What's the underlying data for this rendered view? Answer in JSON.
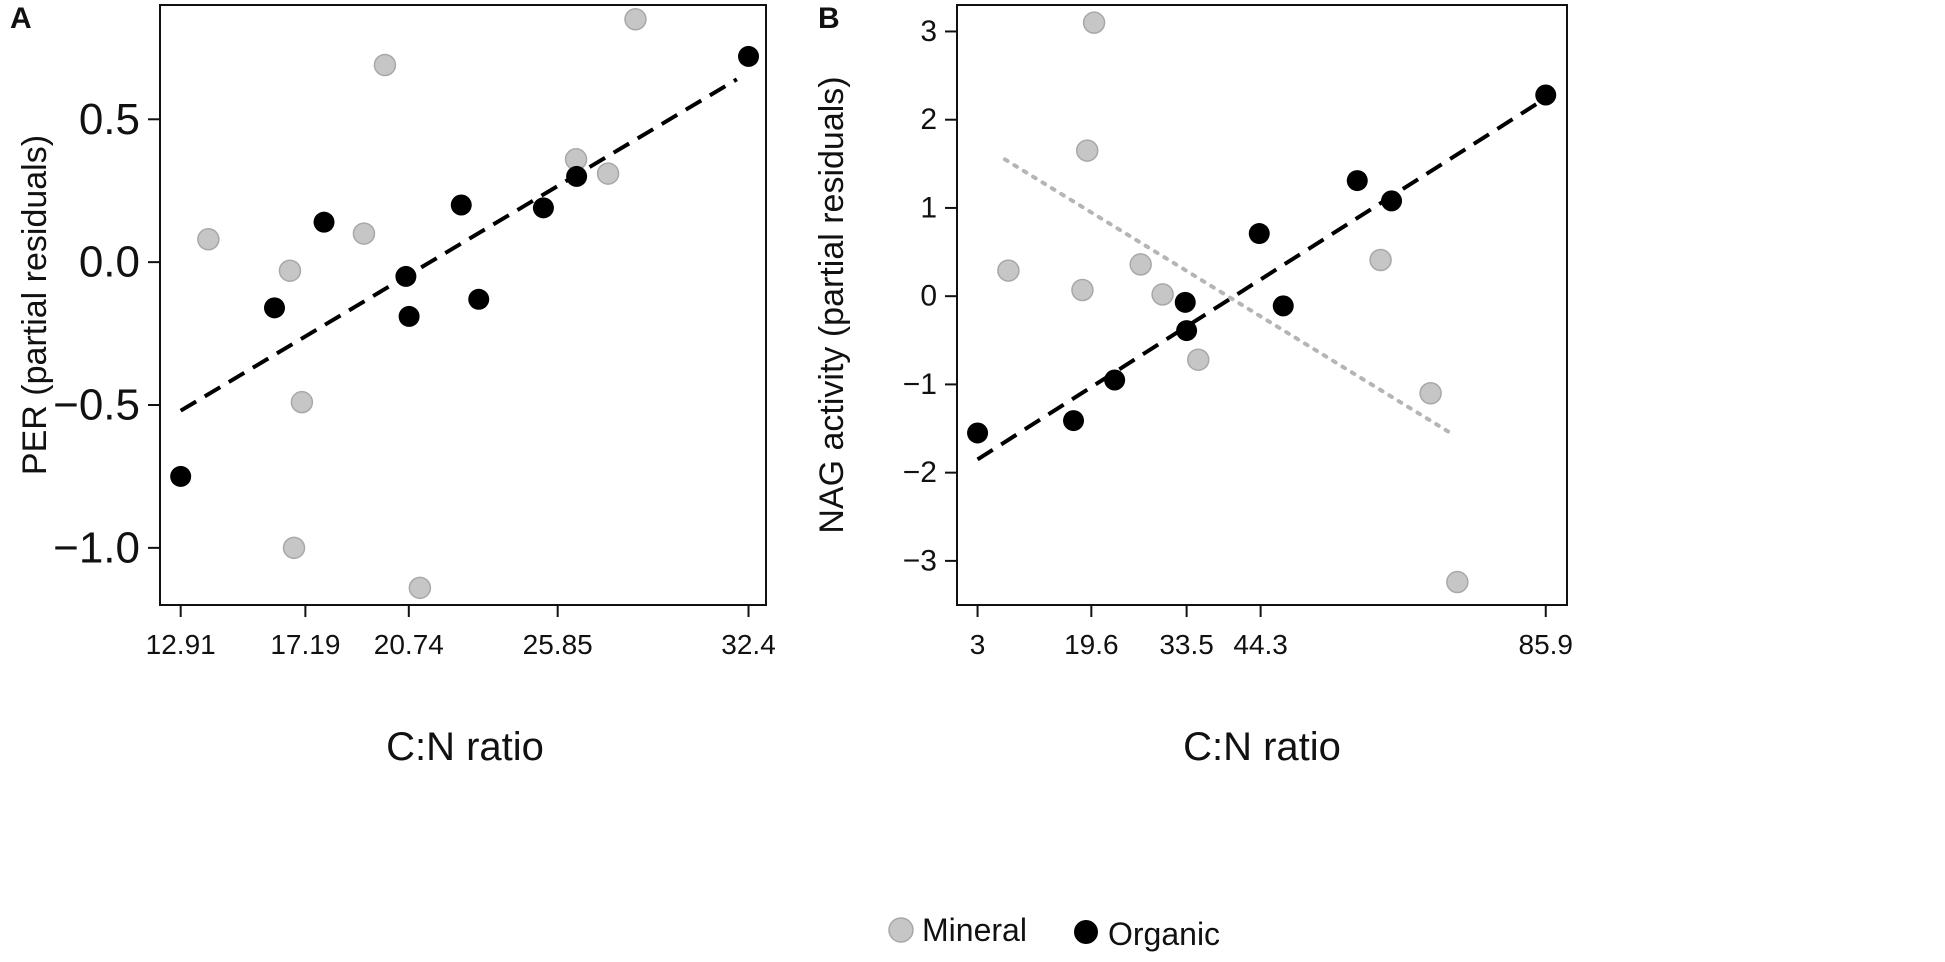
{
  "figure": {
    "legend": {
      "mineral": "Mineral",
      "organic": "Organic"
    }
  },
  "colors": {
    "mineral": "#c6c6c6",
    "mineral_stroke": "#a8a8a8",
    "organic": "#000000",
    "axis": "#111111"
  },
  "chart_data": [
    {
      "type": "scatter",
      "panel_label": "A",
      "title": "",
      "xlabel": "C:N ratio",
      "ylabel": "PER (partial residuals)",
      "xlim": [
        12.2,
        33.0
      ],
      "ylim": [
        -1.2,
        0.9
      ],
      "x_ticks": [
        12.91,
        17.19,
        20.74,
        25.85,
        32.4
      ],
      "x_tick_labels": [
        "12.91",
        "17.19",
        "20.74",
        "25.85",
        "32.4"
      ],
      "y_ticks": [
        0.5,
        0.0,
        -0.5,
        -1.0
      ],
      "y_tick_labels": [
        "0.5",
        "0.0",
        "−0.5",
        "−1.0"
      ],
      "series": [
        {
          "name": "Mineral",
          "points": [
            [
              13.86,
              0.08
            ],
            [
              16.66,
              -0.03
            ],
            [
              17.07,
              -0.49
            ],
            [
              16.8,
              -1.0
            ],
            [
              19.2,
              0.1
            ],
            [
              19.92,
              0.69
            ],
            [
              21.12,
              -1.14
            ],
            [
              26.48,
              0.36
            ],
            [
              27.58,
              0.31
            ],
            [
              28.52,
              0.85
            ]
          ]
        },
        {
          "name": "Organic",
          "points": [
            [
              12.91,
              -0.75
            ],
            [
              16.13,
              -0.16
            ],
            [
              17.83,
              0.14
            ],
            [
              20.64,
              -0.05
            ],
            [
              20.75,
              -0.19
            ],
            [
              22.54,
              0.2
            ],
            [
              23.14,
              -0.13
            ],
            [
              25.36,
              0.19
            ],
            [
              26.5,
              0.3
            ],
            [
              32.4,
              0.72
            ]
          ]
        }
      ],
      "fit_lines": [
        {
          "name": "Organic fit",
          "style": "dashed",
          "points": [
            [
              12.91,
              -0.52
            ],
            [
              32.0,
              0.64
            ]
          ]
        }
      ]
    },
    {
      "type": "scatter",
      "panel_label": "B",
      "title": "",
      "xlabel": "C:N ratio",
      "ylabel": "NAG activity (partial residuals)",
      "xlim": [
        0,
        89
      ],
      "ylim": [
        -3.5,
        3.3
      ],
      "x_ticks": [
        3,
        19.6,
        33.5,
        44.3,
        85.9
      ],
      "x_tick_labels": [
        "3",
        "19.6",
        "33.5",
        "44.3",
        "85.9"
      ],
      "y_ticks": [
        3,
        2,
        1,
        0,
        -1,
        -2,
        -3
      ],
      "y_tick_labels": [
        "3",
        "2",
        "1",
        "0",
        "−1",
        "−2",
        "−3"
      ],
      "series": [
        {
          "name": "Mineral",
          "points": [
            [
              7.5,
              0.29
            ],
            [
              18.3,
              0.07
            ],
            [
              19.0,
              1.65
            ],
            [
              20.0,
              3.1
            ],
            [
              26.8,
              0.36
            ],
            [
              30.0,
              0.02
            ],
            [
              35.2,
              -0.72
            ],
            [
              61.8,
              0.41
            ],
            [
              69.1,
              -1.1
            ],
            [
              73.0,
              -3.24
            ]
          ]
        },
        {
          "name": "Organic",
          "points": [
            [
              3.0,
              -1.55
            ],
            [
              17.0,
              -1.41
            ],
            [
              23.0,
              -0.95
            ],
            [
              33.3,
              -0.07
            ],
            [
              33.5,
              -0.39
            ],
            [
              44.1,
              0.71
            ],
            [
              47.6,
              -0.11
            ],
            [
              58.4,
              1.31
            ],
            [
              63.4,
              1.08
            ],
            [
              85.9,
              2.28
            ]
          ]
        }
      ],
      "fit_lines": [
        {
          "name": "Organic fit",
          "style": "dashed",
          "points": [
            [
              3.0,
              -1.85
            ],
            [
              85.0,
              2.2
            ]
          ]
        },
        {
          "name": "Mineral fit",
          "style": "dotted",
          "points": [
            [
              7.0,
              1.55
            ],
            [
              72.0,
              -1.55
            ]
          ]
        }
      ]
    }
  ]
}
